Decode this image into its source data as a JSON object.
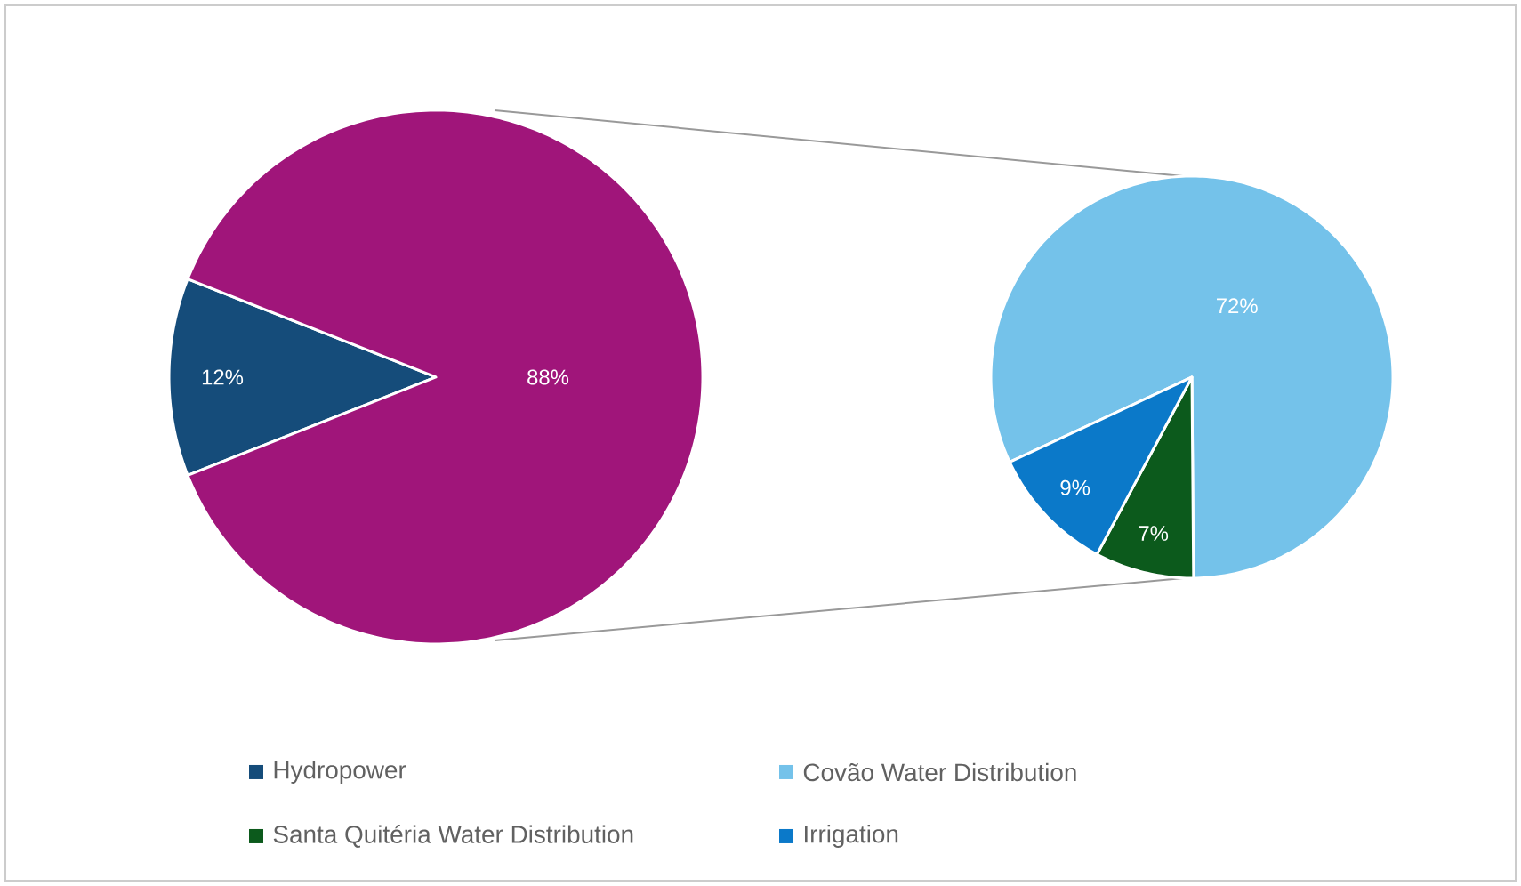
{
  "chart_data": [
    {
      "type": "pie",
      "categories": [
        "Hydropower",
        null
      ],
      "values": [
        12,
        88
      ],
      "colors": [
        "#154c7a",
        "#a0157a"
      ],
      "value_labels": [
        "12%",
        "88%"
      ],
      "legend": "bottom"
    },
    {
      "type": "pie",
      "categories": [
        "Covão Water Distribution",
        "Santa Quitéria Water Distribution",
        "Irrigation"
      ],
      "values": [
        72,
        7,
        9
      ],
      "colors": [
        "#74c2ea",
        "#0c5a1c",
        "#0b79c9"
      ],
      "value_labels": [
        "72%",
        "7%",
        "9%"
      ],
      "legend": "bottom"
    }
  ]
}
